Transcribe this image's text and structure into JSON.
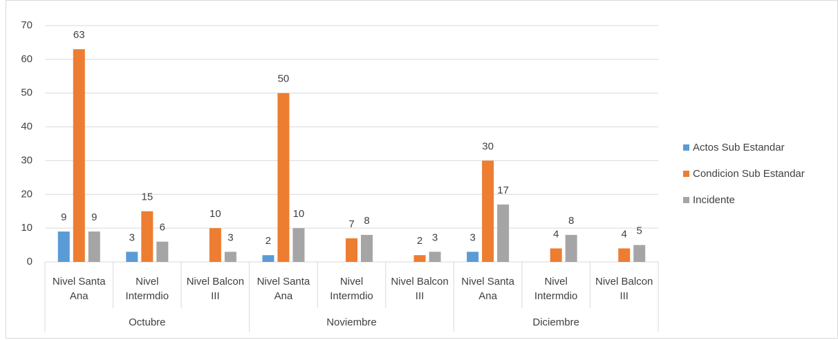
{
  "chart_data": {
    "type": "bar",
    "categories": [
      "Nivel Santa Ana",
      "Nivel Intermdio",
      "Nivel Balcon III",
      "Nivel Santa Ana",
      "Nivel Intermdio",
      "Nivel Balcon III",
      "Nivel Santa Ana",
      "Nivel Intermdio",
      "Nivel Balcon III"
    ],
    "groups": [
      "Octubre",
      "Noviembre",
      "Diciembre"
    ],
    "series": [
      {
        "name": "Actos Sub Estandar",
        "color": "#5b9bd5",
        "values": [
          9,
          3,
          null,
          2,
          null,
          null,
          3,
          null,
          null
        ]
      },
      {
        "name": "Condicion Sub Estandar",
        "color": "#ed7d31",
        "values": [
          63,
          15,
          10,
          50,
          7,
          2,
          30,
          4,
          4
        ]
      },
      {
        "name": "Incidente",
        "color": "#a5a5a5",
        "values": [
          9,
          6,
          3,
          10,
          8,
          3,
          17,
          8,
          5
        ]
      }
    ],
    "ylim": [
      0,
      70
    ],
    "yticks": [
      0,
      10,
      20,
      30,
      40,
      50,
      60,
      70
    ],
    "grid": true,
    "legend": "right"
  }
}
